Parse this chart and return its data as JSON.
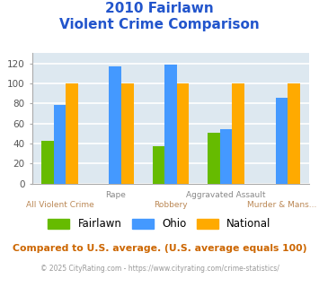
{
  "title_line1": "2010 Fairlawn",
  "title_line2": "Violent Crime Comparison",
  "categories": [
    "All Violent Crime",
    "Rape",
    "Robbery",
    "Aggravated Assault",
    "Murder & Mans..."
  ],
  "series": {
    "Fairlawn": [
      43,
      0,
      37,
      51,
      0
    ],
    "Ohio": [
      78,
      117,
      119,
      54,
      86
    ],
    "National": [
      100,
      100,
      100,
      100,
      100
    ]
  },
  "colors": {
    "Fairlawn": "#66bb00",
    "Ohio": "#4499ff",
    "National": "#ffaa00"
  },
  "ylim": [
    0,
    130
  ],
  "yticks": [
    0,
    20,
    40,
    60,
    80,
    100,
    120
  ],
  "x_labels_row1": [
    "",
    "Rape",
    "",
    "Aggravated Assault",
    ""
  ],
  "x_labels_row2": [
    "All Violent Crime",
    "",
    "Robbery",
    "",
    "Murder & Mans..."
  ],
  "x_label_row1_color": "#888888",
  "x_label_row2_color": "#bb8855",
  "title_color": "#2255cc",
  "bg_color": "#dde8f0",
  "grid_color": "#ffffff",
  "footer_text": "Compared to U.S. average. (U.S. average equals 100)",
  "copyright_text": "© 2025 CityRating.com - https://www.cityrating.com/crime-statistics/",
  "footer_color": "#cc6600",
  "copyright_color": "#999999"
}
